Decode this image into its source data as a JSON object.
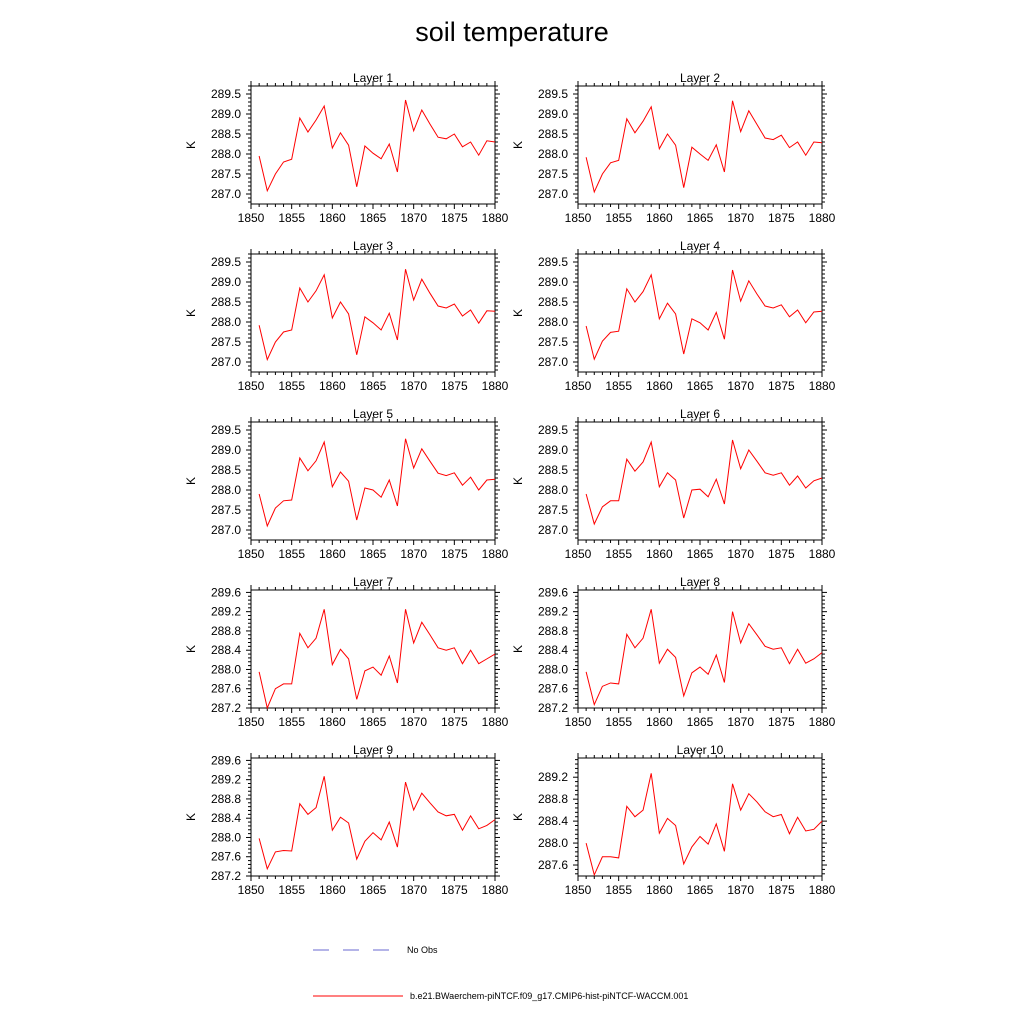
{
  "title": "soil temperature",
  "legend": [
    {
      "label": "No Obs",
      "color": "#6a6ad0",
      "dash": true
    },
    {
      "label": "b.e21.BWaerchem-piNTCF.f09_g17.CMIP6-hist-piNTCF-WACCM.001",
      "color": "#ff0000",
      "dash": false
    }
  ],
  "chart_data": [
    {
      "type": "line",
      "title": "Layer 1",
      "ylabel": "K",
      "xlim": [
        1850,
        1880
      ],
      "ylim": [
        286.75,
        289.7
      ],
      "xticks": [
        1850,
        1855,
        1860,
        1865,
        1870,
        1875,
        1880
      ],
      "yticks": [
        287.0,
        287.5,
        288.0,
        288.5,
        289.0,
        289.5
      ],
      "ytick_labels": [
        "287.0",
        "287.5",
        "288.0",
        "288.5",
        "289.0",
        "289.5"
      ],
      "x": [
        1851,
        1852,
        1853,
        1854,
        1855,
        1856,
        1857,
        1858,
        1859,
        1860,
        1861,
        1862,
        1863,
        1864,
        1865,
        1866,
        1867,
        1868,
        1869,
        1870,
        1871,
        1872,
        1873,
        1874,
        1875,
        1876,
        1877,
        1878,
        1879,
        1880
      ],
      "series": [
        {
          "color": "#ff0000",
          "values": [
            287.95,
            287.08,
            287.5,
            287.8,
            287.87,
            288.9,
            288.55,
            288.85,
            289.2,
            288.15,
            288.53,
            288.22,
            287.18,
            288.2,
            288.02,
            287.88,
            288.25,
            287.55,
            289.35,
            288.58,
            289.1,
            288.75,
            288.42,
            288.38,
            288.5,
            288.18,
            288.3,
            287.97,
            288.33,
            288.3
          ]
        }
      ]
    },
    {
      "type": "line",
      "title": "Layer 2",
      "ylabel": "K",
      "xlim": [
        1850,
        1880
      ],
      "ylim": [
        286.75,
        289.7
      ],
      "xticks": [
        1850,
        1855,
        1860,
        1865,
        1870,
        1875,
        1880
      ],
      "yticks": [
        287.0,
        287.5,
        288.0,
        288.5,
        289.0,
        289.5
      ],
      "ytick_labels": [
        "287.0",
        "287.5",
        "288.0",
        "288.5",
        "289.0",
        "289.5"
      ],
      "x": [
        1851,
        1852,
        1853,
        1854,
        1855,
        1856,
        1857,
        1858,
        1859,
        1860,
        1861,
        1862,
        1863,
        1864,
        1865,
        1866,
        1867,
        1868,
        1869,
        1870,
        1871,
        1872,
        1873,
        1874,
        1875,
        1876,
        1877,
        1878,
        1879,
        1880
      ],
      "series": [
        {
          "color": "#ff0000",
          "values": [
            287.92,
            287.05,
            287.5,
            287.78,
            287.84,
            288.88,
            288.53,
            288.82,
            289.18,
            288.13,
            288.5,
            288.22,
            287.16,
            288.17,
            288.0,
            287.84,
            288.23,
            287.55,
            289.33,
            288.56,
            289.08,
            288.74,
            288.4,
            288.36,
            288.47,
            288.16,
            288.3,
            287.97,
            288.3,
            288.28
          ]
        }
      ]
    },
    {
      "type": "line",
      "title": "Layer 3",
      "ylabel": "K",
      "xlim": [
        1850,
        1880
      ],
      "ylim": [
        286.75,
        289.7
      ],
      "xticks": [
        1850,
        1855,
        1860,
        1865,
        1870,
        1875,
        1880
      ],
      "yticks": [
        287.0,
        287.5,
        288.0,
        288.5,
        289.0,
        289.5
      ],
      "ytick_labels": [
        "287.0",
        "287.5",
        "288.0",
        "288.5",
        "289.0",
        "289.5"
      ],
      "x": [
        1851,
        1852,
        1853,
        1854,
        1855,
        1856,
        1857,
        1858,
        1859,
        1860,
        1861,
        1862,
        1863,
        1864,
        1865,
        1866,
        1867,
        1868,
        1869,
        1870,
        1871,
        1872,
        1873,
        1874,
        1875,
        1876,
        1877,
        1878,
        1879,
        1880
      ],
      "series": [
        {
          "color": "#ff0000",
          "values": [
            287.92,
            287.06,
            287.5,
            287.75,
            287.8,
            288.85,
            288.5,
            288.78,
            289.18,
            288.1,
            288.5,
            288.2,
            287.18,
            288.13,
            287.98,
            287.8,
            288.22,
            287.55,
            289.32,
            288.55,
            289.07,
            288.72,
            288.4,
            288.35,
            288.45,
            288.15,
            288.3,
            287.97,
            288.28,
            288.27
          ]
        }
      ]
    },
    {
      "type": "line",
      "title": "Layer 4",
      "ylabel": "K",
      "xlim": [
        1850,
        1880
      ],
      "ylim": [
        286.75,
        289.7
      ],
      "xticks": [
        1850,
        1855,
        1860,
        1865,
        1870,
        1875,
        1880
      ],
      "yticks": [
        287.0,
        287.5,
        288.0,
        288.5,
        289.0,
        289.5
      ],
      "ytick_labels": [
        "287.0",
        "287.5",
        "288.0",
        "288.5",
        "289.0",
        "289.5"
      ],
      "x": [
        1851,
        1852,
        1853,
        1854,
        1855,
        1856,
        1857,
        1858,
        1859,
        1860,
        1861,
        1862,
        1863,
        1864,
        1865,
        1866,
        1867,
        1868,
        1869,
        1870,
        1871,
        1872,
        1873,
        1874,
        1875,
        1876,
        1877,
        1878,
        1879,
        1880
      ],
      "series": [
        {
          "color": "#ff0000",
          "values": [
            287.9,
            287.07,
            287.52,
            287.74,
            287.77,
            288.83,
            288.5,
            288.76,
            289.18,
            288.08,
            288.47,
            288.2,
            287.2,
            288.08,
            287.98,
            287.8,
            288.24,
            287.57,
            289.3,
            288.52,
            289.03,
            288.7,
            288.4,
            288.35,
            288.43,
            288.13,
            288.3,
            287.98,
            288.25,
            288.27
          ]
        }
      ]
    },
    {
      "type": "line",
      "title": "Layer 5",
      "ylabel": "K",
      "xlim": [
        1850,
        1880
      ],
      "ylim": [
        286.75,
        289.7
      ],
      "xticks": [
        1850,
        1855,
        1860,
        1865,
        1870,
        1875,
        1880
      ],
      "yticks": [
        287.0,
        287.5,
        288.0,
        288.5,
        289.0,
        289.5
      ],
      "ytick_labels": [
        "287.0",
        "287.5",
        "288.0",
        "288.5",
        "289.0",
        "289.5"
      ],
      "x": [
        1851,
        1852,
        1853,
        1854,
        1855,
        1856,
        1857,
        1858,
        1859,
        1860,
        1861,
        1862,
        1863,
        1864,
        1865,
        1866,
        1867,
        1868,
        1869,
        1870,
        1871,
        1872,
        1873,
        1874,
        1875,
        1876,
        1877,
        1878,
        1879,
        1880
      ],
      "series": [
        {
          "color": "#ff0000",
          "values": [
            287.9,
            287.1,
            287.55,
            287.73,
            287.75,
            288.8,
            288.48,
            288.73,
            289.2,
            288.08,
            288.45,
            288.22,
            287.25,
            288.05,
            288.0,
            287.82,
            288.25,
            287.6,
            289.28,
            288.55,
            289.03,
            288.72,
            288.42,
            288.36,
            288.43,
            288.12,
            288.32,
            288.0,
            288.25,
            288.27
          ]
        }
      ]
    },
    {
      "type": "line",
      "title": "Layer 6",
      "ylabel": "K",
      "xlim": [
        1850,
        1880
      ],
      "ylim": [
        286.75,
        289.7
      ],
      "xticks": [
        1850,
        1855,
        1860,
        1865,
        1870,
        1875,
        1880
      ],
      "yticks": [
        287.0,
        287.5,
        288.0,
        288.5,
        289.0,
        289.5
      ],
      "ytick_labels": [
        "287.0",
        "287.5",
        "288.0",
        "288.5",
        "289.0",
        "289.5"
      ],
      "x": [
        1851,
        1852,
        1853,
        1854,
        1855,
        1856,
        1857,
        1858,
        1859,
        1860,
        1861,
        1862,
        1863,
        1864,
        1865,
        1866,
        1867,
        1868,
        1869,
        1870,
        1871,
        1872,
        1873,
        1874,
        1875,
        1876,
        1877,
        1878,
        1879,
        1880
      ],
      "series": [
        {
          "color": "#ff0000",
          "values": [
            287.9,
            287.15,
            287.58,
            287.73,
            287.73,
            288.77,
            288.47,
            288.7,
            289.2,
            288.08,
            288.43,
            288.25,
            287.3,
            288.0,
            288.02,
            287.83,
            288.27,
            287.65,
            289.25,
            288.53,
            289.0,
            288.72,
            288.43,
            288.37,
            288.43,
            288.12,
            288.35,
            288.05,
            288.23,
            288.3
          ]
        }
      ]
    },
    {
      "type": "line",
      "title": "Layer 7",
      "ylabel": "K",
      "xlim": [
        1850,
        1880
      ],
      "ylim": [
        287.2,
        289.65
      ],
      "xticks": [
        1850,
        1855,
        1860,
        1865,
        1870,
        1875,
        1880
      ],
      "yticks": [
        287.2,
        287.6,
        288.0,
        288.4,
        288.8,
        289.2,
        289.6
      ],
      "ytick_labels": [
        "287.2",
        "287.6",
        "288.0",
        "288.4",
        "288.8",
        "289.2",
        "289.6"
      ],
      "x": [
        1851,
        1852,
        1853,
        1854,
        1855,
        1856,
        1857,
        1858,
        1859,
        1860,
        1861,
        1862,
        1863,
        1864,
        1865,
        1866,
        1867,
        1868,
        1869,
        1870,
        1871,
        1872,
        1873,
        1874,
        1875,
        1876,
        1877,
        1878,
        1879,
        1880
      ],
      "series": [
        {
          "color": "#ff0000",
          "values": [
            287.95,
            287.2,
            287.6,
            287.7,
            287.7,
            288.75,
            288.45,
            288.65,
            289.25,
            288.1,
            288.42,
            288.22,
            287.38,
            287.97,
            288.05,
            287.88,
            288.28,
            287.72,
            289.25,
            288.55,
            288.98,
            288.72,
            288.45,
            288.4,
            288.45,
            288.12,
            288.4,
            288.12,
            288.22,
            288.32
          ]
        }
      ]
    },
    {
      "type": "line",
      "title": "Layer 8",
      "ylabel": "K",
      "xlim": [
        1850,
        1880
      ],
      "ylim": [
        287.2,
        289.65
      ],
      "xticks": [
        1850,
        1855,
        1860,
        1865,
        1870,
        1875,
        1880
      ],
      "yticks": [
        287.2,
        287.6,
        288.0,
        288.4,
        288.8,
        289.2,
        289.6
      ],
      "ytick_labels": [
        "287.2",
        "287.6",
        "288.0",
        "288.4",
        "288.8",
        "289.2",
        "289.6"
      ],
      "x": [
        1851,
        1852,
        1853,
        1854,
        1855,
        1856,
        1857,
        1858,
        1859,
        1860,
        1861,
        1862,
        1863,
        1864,
        1865,
        1866,
        1867,
        1868,
        1869,
        1870,
        1871,
        1872,
        1873,
        1874,
        1875,
        1876,
        1877,
        1878,
        1879,
        1880
      ],
      "series": [
        {
          "color": "#ff0000",
          "values": [
            287.95,
            287.27,
            287.65,
            287.72,
            287.7,
            288.73,
            288.45,
            288.65,
            289.25,
            288.13,
            288.42,
            288.25,
            287.45,
            287.93,
            288.05,
            287.9,
            288.3,
            287.73,
            289.2,
            288.55,
            288.95,
            288.72,
            288.48,
            288.42,
            288.45,
            288.12,
            288.42,
            288.13,
            288.22,
            288.35
          ]
        }
      ]
    },
    {
      "type": "line",
      "title": "Layer 9",
      "ylabel": "K",
      "xlim": [
        1850,
        1880
      ],
      "ylim": [
        287.2,
        289.65
      ],
      "xticks": [
        1850,
        1855,
        1860,
        1865,
        1870,
        1875,
        1880
      ],
      "yticks": [
        287.2,
        287.6,
        288.0,
        288.4,
        288.8,
        289.2,
        289.6
      ],
      "ytick_labels": [
        "287.2",
        "287.6",
        "288.0",
        "288.4",
        "288.8",
        "289.2",
        "289.6"
      ],
      "x": [
        1851,
        1852,
        1853,
        1854,
        1855,
        1856,
        1857,
        1858,
        1859,
        1860,
        1861,
        1862,
        1863,
        1864,
        1865,
        1866,
        1867,
        1868,
        1869,
        1870,
        1871,
        1872,
        1873,
        1874,
        1875,
        1876,
        1877,
        1878,
        1879,
        1880
      ],
      "series": [
        {
          "color": "#ff0000",
          "values": [
            287.98,
            287.35,
            287.7,
            287.73,
            287.72,
            288.7,
            288.48,
            288.62,
            289.27,
            288.15,
            288.42,
            288.3,
            287.55,
            287.92,
            288.1,
            287.95,
            288.32,
            287.8,
            289.15,
            288.57,
            288.92,
            288.72,
            288.53,
            288.45,
            288.48,
            288.15,
            288.45,
            288.18,
            288.25,
            288.37
          ]
        }
      ]
    },
    {
      "type": "line",
      "title": "Layer 10",
      "ylabel": "K",
      "xlim": [
        1850,
        1880
      ],
      "ylim": [
        287.4,
        289.55
      ],
      "xticks": [
        1850,
        1855,
        1860,
        1865,
        1870,
        1875,
        1880
      ],
      "yticks": [
        287.6,
        288.0,
        288.4,
        288.8,
        289.2
      ],
      "ytick_labels": [
        "287.6",
        "288.0",
        "288.4",
        "288.8",
        "289.2"
      ],
      "x": [
        1851,
        1852,
        1853,
        1854,
        1855,
        1856,
        1857,
        1858,
        1859,
        1860,
        1861,
        1862,
        1863,
        1864,
        1865,
        1866,
        1867,
        1868,
        1869,
        1870,
        1871,
        1872,
        1873,
        1874,
        1875,
        1876,
        1877,
        1878,
        1879,
        1880
      ],
      "series": [
        {
          "color": "#ff0000",
          "values": [
            288.0,
            287.42,
            287.75,
            287.75,
            287.73,
            288.67,
            288.48,
            288.6,
            289.27,
            288.18,
            288.45,
            288.32,
            287.62,
            287.93,
            288.12,
            287.98,
            288.35,
            287.85,
            289.08,
            288.6,
            288.9,
            288.75,
            288.57,
            288.48,
            288.52,
            288.17,
            288.47,
            288.22,
            288.25,
            288.4
          ]
        }
      ]
    }
  ]
}
